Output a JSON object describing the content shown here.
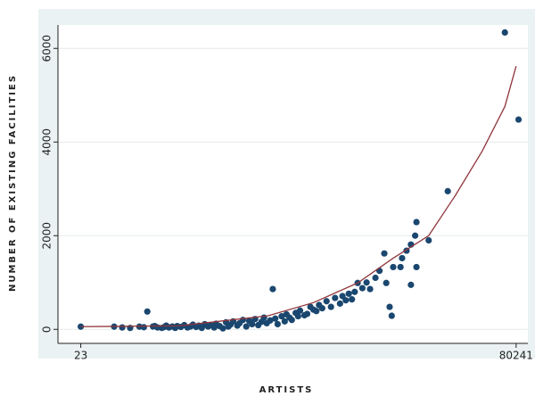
{
  "chart_data": {
    "type": "scatter",
    "x_label": "ARTISTS",
    "y_label": "NUMBER OF EXISTING FACILITIES",
    "xscale": "log",
    "xlim": [
      15,
      100000
    ],
    "xticks": [
      23,
      80241
    ],
    "ylim": [
      -300,
      6500
    ],
    "yticks": [
      0,
      2000,
      4000,
      6000
    ],
    "grid": true,
    "series": [
      {
        "type": "scatter",
        "color": "#1a476f",
        "x": [
          23,
          43,
          50,
          58,
          69,
          75,
          80,
          89,
          92,
          97,
          105,
          110,
          114,
          120,
          128,
          135,
          140,
          150,
          160,
          170,
          180,
          188,
          200,
          210,
          222,
          235,
          250,
          262,
          280,
          290,
          310,
          330,
          350,
          366,
          380,
          400,
          432,
          450,
          480,
          511,
          540,
          570,
          603,
          640,
          680,
          712,
          750,
          800,
          840,
          880,
          920,
          992,
          1050,
          1086,
          1150,
          1200,
          1290,
          1350,
          1400,
          1520,
          1600,
          1700,
          1800,
          1900,
          2000,
          2120,
          2300,
          2500,
          2700,
          2960,
          3100,
          3300,
          3490,
          3700,
          3900,
          4120,
          4500,
          4870,
          5200,
          5750,
          6200,
          6790,
          7040,
          7500,
          7800,
          8020,
          9200,
          9470,
          10300,
          11180,
          11180,
          12100,
          12400,
          12400,
          15590,
          22300,
          65000,
          84000
        ],
        "values": [
          57,
          57,
          40,
          30,
          57,
          45,
          380,
          60,
          70,
          40,
          30,
          50,
          80,
          40,
          60,
          30,
          70,
          50,
          90,
          40,
          60,
          100,
          50,
          80,
          30,
          110,
          60,
          90,
          40,
          120,
          70,
          20,
          150,
          60,
          100,
          170,
          80,
          130,
          200,
          60,
          180,
          110,
          220,
          90,
          160,
          250,
          130,
          190,
          860,
          230,
          110,
          280,
          170,
          320,
          250,
          200,
          350,
          280,
          400,
          300,
          330,
          480,
          420,
          390,
          520,
          450,
          600,
          480,
          670,
          550,
          710,
          620,
          760,
          640,
          800,
          990,
          880,
          1000,
          860,
          1100,
          1250,
          1620,
          990,
          480,
          290,
          1330,
          1330,
          1520,
          1680,
          950,
          1810,
          2000,
          2290,
          1330,
          1900,
          2950,
          6340,
          4480
        ]
      },
      {
        "type": "line",
        "color": "#90353b",
        "x": [
          23,
          147,
          770,
          1800,
          4120,
          8020,
          15590,
          25700,
          42600,
          65000,
          80241
        ],
        "values": [
          57,
          76,
          290,
          570,
          990,
          1520,
          2000,
          2860,
          3810,
          4760,
          5620
        ]
      }
    ]
  }
}
